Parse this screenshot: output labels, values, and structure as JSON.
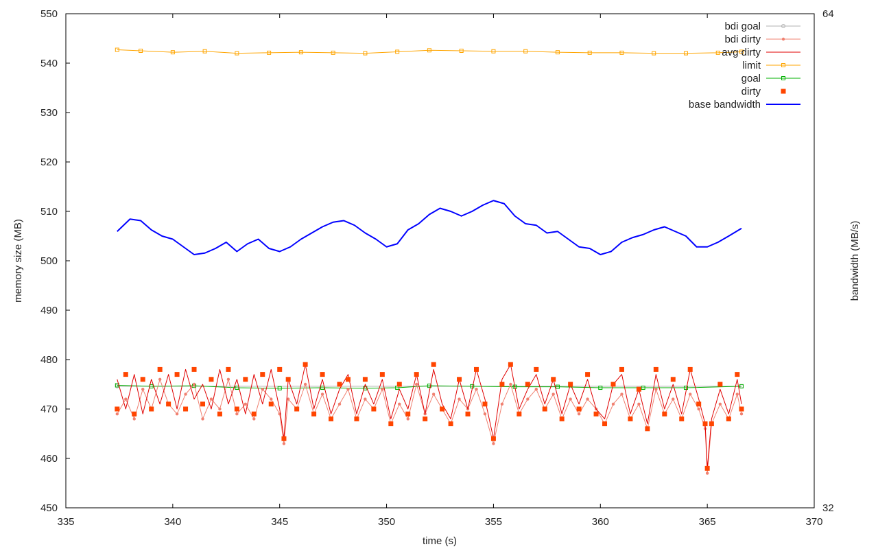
{
  "chart_data": {
    "type": "line",
    "xlabel": "time (s)",
    "ylabel": "memory size (MB)",
    "y2label": "bandwidth (MB/s)",
    "xlim": [
      335,
      370
    ],
    "ylim": [
      450,
      550
    ],
    "y2lim": [
      32,
      64
    ],
    "xticks": [
      335,
      340,
      345,
      350,
      355,
      360,
      365,
      370
    ],
    "yticks": [
      450,
      460,
      470,
      480,
      490,
      500,
      510,
      520,
      530,
      540,
      550
    ],
    "y2ticks": [
      32,
      64
    ],
    "grid": false,
    "legend_position": "top-right",
    "series": [
      {
        "name": "bdi goal",
        "color": "#b0b0b0",
        "style": "line-circle",
        "x": [
          337.4,
          366.6
        ],
        "y": [
          474.6,
          474.6
        ]
      },
      {
        "name": "bdi dirty",
        "color": "#f08070",
        "style": "line-dot",
        "x": [
          337.4,
          337.8,
          338.2,
          338.6,
          339.0,
          339.4,
          339.8,
          340.2,
          340.6,
          341.0,
          341.4,
          341.8,
          342.2,
          342.6,
          343.0,
          343.4,
          343.8,
          344.2,
          344.6,
          345.0,
          345.2,
          345.4,
          345.8,
          346.2,
          346.6,
          347.0,
          347.4,
          347.8,
          348.2,
          348.6,
          349.0,
          349.4,
          349.8,
          350.2,
          350.6,
          351.0,
          351.4,
          351.8,
          352.2,
          352.6,
          353.0,
          353.4,
          353.8,
          354.2,
          354.6,
          355.0,
          355.4,
          355.8,
          356.2,
          356.6,
          357.0,
          357.4,
          357.8,
          358.2,
          358.6,
          359.0,
          359.4,
          359.8,
          360.2,
          360.6,
          361.0,
          361.4,
          361.8,
          362.2,
          362.6,
          363.0,
          363.4,
          363.8,
          364.2,
          364.6,
          364.9,
          365.0,
          365.2,
          365.6,
          366.0,
          366.4,
          366.6
        ],
        "y": [
          469,
          472,
          468,
          474,
          470,
          476,
          471,
          469,
          473,
          475,
          468,
          472,
          470,
          476,
          469,
          471,
          468,
          474,
          472,
          469,
          463,
          472,
          470,
          475,
          469,
          473,
          468,
          471,
          474,
          468,
          472,
          470,
          474,
          467,
          471,
          468,
          475,
          469,
          473,
          470,
          467,
          472,
          470,
          474,
          469,
          463,
          471,
          475,
          469,
          472,
          474,
          470,
          473,
          468,
          472,
          469,
          472,
          470,
          467,
          471,
          473,
          468,
          471,
          466,
          474,
          469,
          472,
          468,
          473,
          470,
          466,
          457,
          467,
          471,
          468,
          473,
          469
        ]
      },
      {
        "name": "avg dirty",
        "color": "#e00000",
        "style": "line",
        "x": [
          337.4,
          337.8,
          338.2,
          338.6,
          339.0,
          339.4,
          339.8,
          340.2,
          340.6,
          341.0,
          341.4,
          341.8,
          342.2,
          342.6,
          343.0,
          343.4,
          343.8,
          344.2,
          344.6,
          345.0,
          345.2,
          345.4,
          345.8,
          346.2,
          346.6,
          347.0,
          347.4,
          347.8,
          348.2,
          348.6,
          349.0,
          349.4,
          349.8,
          350.2,
          350.6,
          351.0,
          351.4,
          351.8,
          352.2,
          352.6,
          353.0,
          353.4,
          353.8,
          354.2,
          354.6,
          355.0,
          355.4,
          355.8,
          356.2,
          356.6,
          357.0,
          357.4,
          357.8,
          358.2,
          358.6,
          359.0,
          359.4,
          359.8,
          360.2,
          360.6,
          361.0,
          361.4,
          361.8,
          362.2,
          362.6,
          363.0,
          363.4,
          363.8,
          364.2,
          364.6,
          364.9,
          365.0,
          365.2,
          365.6,
          366.0,
          366.4,
          366.6
        ],
        "y": [
          476,
          470,
          477,
          469,
          476,
          471,
          477,
          470,
          478,
          472,
          475,
          470,
          478,
          471,
          476,
          469,
          477,
          471,
          478,
          470,
          464,
          476,
          471,
          479,
          470,
          476,
          469,
          474,
          477,
          469,
          475,
          471,
          476,
          468,
          474,
          470,
          477,
          469,
          478,
          471,
          468,
          476,
          470,
          478,
          472,
          464,
          476,
          479,
          470,
          474,
          477,
          471,
          476,
          469,
          475,
          471,
          476,
          470,
          468,
          475,
          477,
          469,
          474,
          467,
          477,
          470,
          475,
          469,
          478,
          472,
          467,
          458,
          468,
          474,
          469,
          476,
          471
        ]
      },
      {
        "name": "limit",
        "color": "#ffa500",
        "style": "line-square",
        "x": [
          337.4,
          338.5,
          340.0,
          341.5,
          343.0,
          344.5,
          346.0,
          347.5,
          349.0,
          350.5,
          352.0,
          353.5,
          355.0,
          356.5,
          358.0,
          359.5,
          361.0,
          362.5,
          364.0,
          365.5,
          366.6
        ],
        "y": [
          542.7,
          542.5,
          542.2,
          542.4,
          542.0,
          542.1,
          542.2,
          542.1,
          542.0,
          542.3,
          542.6,
          542.5,
          542.4,
          542.4,
          542.2,
          542.1,
          542.1,
          542.0,
          542.0,
          542.1,
          542.3
        ]
      },
      {
        "name": "goal",
        "color": "#00b000",
        "style": "line-square",
        "x": [
          337.4,
          339.0,
          341.0,
          343.0,
          345.0,
          347.0,
          349.0,
          350.5,
          352.0,
          354.0,
          356.0,
          358.0,
          360.0,
          362.0,
          364.0,
          366.6
        ],
        "y": [
          474.8,
          474.6,
          474.7,
          474.3,
          474.2,
          474.3,
          474.2,
          474.3,
          474.7,
          474.6,
          474.5,
          474.5,
          474.3,
          474.3,
          474.3,
          474.6
        ]
      },
      {
        "name": "dirty",
        "color": "#ff4500",
        "style": "points-square",
        "x": [
          337.4,
          337.8,
          338.2,
          338.6,
          339.0,
          339.4,
          339.8,
          340.2,
          340.6,
          341.0,
          341.4,
          341.8,
          342.2,
          342.6,
          343.0,
          343.4,
          343.8,
          344.2,
          344.6,
          345.0,
          345.2,
          345.4,
          345.8,
          346.2,
          346.6,
          347.0,
          347.4,
          347.8,
          348.2,
          348.6,
          349.0,
          349.4,
          349.8,
          350.2,
          350.6,
          351.0,
          351.4,
          351.8,
          352.2,
          352.6,
          353.0,
          353.4,
          353.8,
          354.2,
          354.6,
          355.0,
          355.4,
          355.8,
          356.2,
          356.6,
          357.0,
          357.4,
          357.8,
          358.2,
          358.6,
          359.0,
          359.4,
          359.8,
          360.2,
          360.6,
          361.0,
          361.4,
          361.8,
          362.2,
          362.6,
          363.0,
          363.4,
          363.8,
          364.2,
          364.6,
          364.9,
          365.0,
          365.2,
          365.6,
          366.0,
          366.4,
          366.6
        ],
        "y": [
          470,
          477,
          469,
          476,
          470,
          478,
          471,
          477,
          470,
          478,
          471,
          476,
          469,
          478,
          470,
          476,
          469,
          477,
          471,
          478,
          464,
          476,
          470,
          479,
          469,
          477,
          468,
          475,
          476,
          468,
          476,
          470,
          477,
          467,
          475,
          469,
          477,
          468,
          479,
          470,
          467,
          476,
          469,
          478,
          471,
          464,
          475,
          479,
          469,
          475,
          478,
          470,
          476,
          468,
          475,
          470,
          477,
          469,
          467,
          475,
          478,
          468,
          474,
          466,
          478,
          469,
          476,
          468,
          478,
          471,
          467,
          458,
          467,
          475,
          468,
          477,
          470
        ]
      },
      {
        "name": "base bandwidth",
        "color": "#0000ff",
        "style": "line",
        "axis": "y2",
        "x": [
          337.4,
          338.0,
          338.5,
          339.0,
          339.5,
          340.0,
          340.5,
          341.0,
          341.5,
          342.0,
          342.5,
          343.0,
          343.5,
          344.0,
          344.5,
          345.0,
          345.5,
          346.0,
          346.5,
          347.0,
          347.5,
          348.0,
          348.5,
          349.0,
          349.5,
          350.0,
          350.5,
          351.0,
          351.5,
          352.0,
          352.5,
          353.0,
          353.5,
          354.0,
          354.5,
          355.0,
          355.5,
          356.0,
          356.5,
          357.0,
          357.5,
          358.0,
          358.5,
          359.0,
          359.5,
          360.0,
          360.5,
          361.0,
          361.5,
          362.0,
          362.5,
          363.0,
          363.5,
          364.0,
          364.5,
          365.0,
          365.5,
          366.0,
          366.6
        ],
        "y": [
          49.9,
          50.7,
          50.6,
          50.0,
          49.6,
          49.4,
          48.9,
          48.4,
          48.5,
          48.8,
          49.2,
          48.6,
          49.1,
          49.4,
          48.8,
          48.6,
          48.9,
          49.4,
          49.8,
          50.2,
          50.5,
          50.6,
          50.3,
          49.8,
          49.4,
          48.9,
          49.1,
          50.0,
          50.4,
          51.0,
          51.4,
          51.2,
          50.9,
          51.2,
          51.6,
          51.9,
          51.7,
          50.9,
          50.4,
          50.3,
          49.8,
          49.9,
          49.4,
          48.9,
          48.8,
          48.4,
          48.6,
          49.2,
          49.5,
          49.7,
          50.0,
          50.2,
          49.9,
          49.6,
          48.9,
          48.9,
          49.2,
          49.6,
          50.1
        ]
      }
    ]
  }
}
